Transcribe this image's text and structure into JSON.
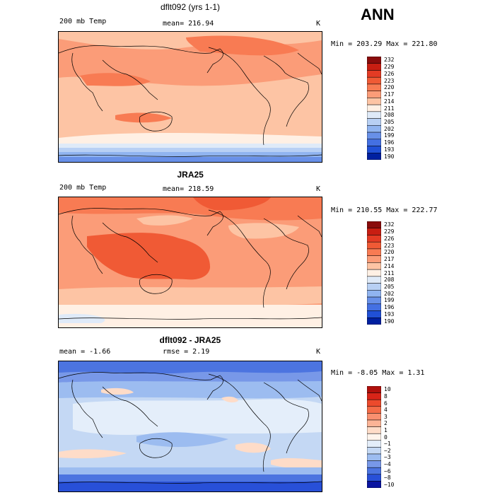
{
  "season": "ANN",
  "chart_data": [
    {
      "type": "heatmap",
      "title": "dflt092 (yrs 1-1)",
      "left_label": "200 mb Temp",
      "stat_label": "mean=  216.94",
      "units": "K",
      "range_label": "Min = 203.29 Max = 221.80",
      "min": 203.29,
      "max": 221.8,
      "mean": 216.94,
      "colorbar_levels": [
        "232",
        "229",
        "226",
        "223",
        "220",
        "217",
        "214",
        "211",
        "208",
        "205",
        "202",
        "199",
        "196",
        "193",
        "190"
      ],
      "colorbar_colors": [
        "#8a0c0c",
        "#c81e12",
        "#e43b24",
        "#f05a35",
        "#f87b53",
        "#fb9c78",
        "#fdc4a4",
        "#fff0e4",
        "#dfeaf8",
        "#b8d0f4",
        "#90b4f0",
        "#6890e8",
        "#4470e2",
        "#2050d6",
        "#0020a0"
      ]
    },
    {
      "type": "heatmap",
      "title": "JRA25",
      "left_label": "200 mb Temp",
      "stat_label": "mean=  218.59",
      "units": "K",
      "range_label": "Min = 210.55 Max = 222.77",
      "min": 210.55,
      "max": 222.77,
      "mean": 218.59,
      "colorbar_levels": [
        "232",
        "229",
        "226",
        "223",
        "220",
        "217",
        "214",
        "211",
        "208",
        "205",
        "202",
        "199",
        "196",
        "193",
        "190"
      ],
      "colorbar_colors": [
        "#8a0c0c",
        "#c81e12",
        "#e43b24",
        "#f05a35",
        "#f87b53",
        "#fb9c78",
        "#fdc4a4",
        "#fff0e4",
        "#dfeaf8",
        "#b8d0f4",
        "#90b4f0",
        "#6890e8",
        "#4470e2",
        "#2050d6",
        "#0020a0"
      ]
    },
    {
      "type": "heatmap",
      "title": "dflt092 - JRA25",
      "left_label": "mean =   -1.66",
      "stat_label": "rmse =    2.19",
      "units": "K",
      "range_label": "Min =  -8.05 Max =   1.31",
      "min": -8.05,
      "max": 1.31,
      "mean": -1.66,
      "rmse": 2.19,
      "colorbar_levels": [
        "10",
        "8",
        "6",
        "4",
        "3",
        "2",
        "1",
        "0",
        "−1",
        "−2",
        "−3",
        "−4",
        "−6",
        "−8",
        "−10"
      ],
      "colorbar_colors": [
        "#b0100c",
        "#d82418",
        "#ec4a2c",
        "#f46c48",
        "#f99070",
        "#fcb496",
        "#fedcc8",
        "#fff4ec",
        "#e4eefa",
        "#c4d8f4",
        "#9cbcf0",
        "#7898e8",
        "#4c74e0",
        "#2850d8",
        "#0a14a0"
      ]
    }
  ]
}
